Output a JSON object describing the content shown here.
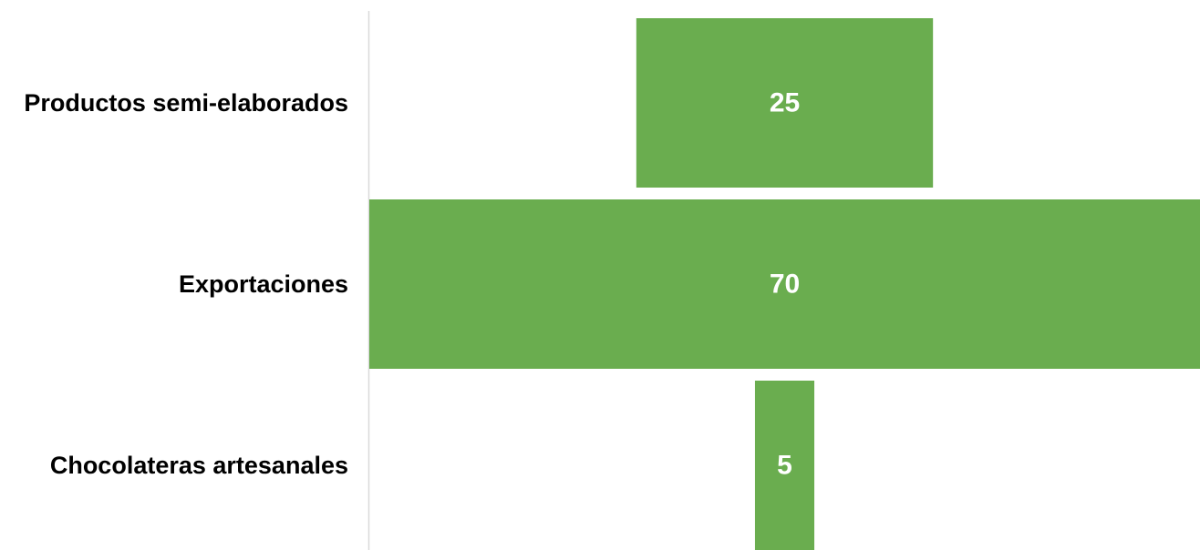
{
  "chart_data": {
    "type": "bar",
    "orientation": "horizontal",
    "categories": [
      "Productos semi-elaborados",
      "Exportaciones",
      "Chocolateras artesanales"
    ],
    "values": [
      25,
      70,
      5
    ],
    "value_labels": [
      "25",
      "70",
      "5"
    ],
    "title": "",
    "xlabel": "",
    "ylabel": "",
    "xlim": [
      0,
      70
    ],
    "bar_alignment": "centered",
    "grid": false,
    "legend": "none",
    "colors": {
      "bar": "#6aad4f",
      "axis": "#d9d9d9",
      "value_label": "#ffffff",
      "category_label": "#000000"
    }
  }
}
